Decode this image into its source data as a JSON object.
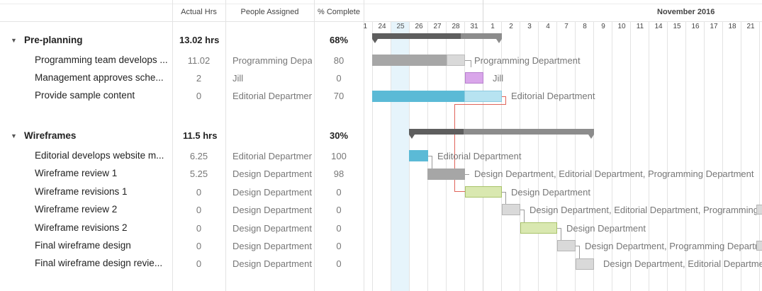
{
  "columns": {
    "actual_hrs": "Actual Hrs",
    "people_assigned": "People Assigned",
    "percent_complete": "% Complete"
  },
  "timeline": {
    "month_label": "November 2016",
    "days": [
      "1",
      "24",
      "25",
      "26",
      "27",
      "28",
      "31",
      "1",
      "2",
      "3",
      "4",
      "7",
      "8",
      "9",
      "10",
      "11",
      "14",
      "15",
      "16",
      "17",
      "18",
      "21"
    ],
    "today_index": 2
  },
  "groups": [
    {
      "name": "Pre-planning",
      "actual_hrs": "13.02 hrs",
      "percent_complete": "68%",
      "tasks": [
        {
          "name": "Programming team develops ...",
          "actual_hrs": "11.02",
          "people": "Programming Depar",
          "percent": "80",
          "bar_label": "Programming Department"
        },
        {
          "name": "Management approves sche...",
          "actual_hrs": "2",
          "people": "Jill",
          "percent": "0",
          "bar_label": "Jill"
        },
        {
          "name": "Provide sample content",
          "actual_hrs": "0",
          "people": "Editorial Departmen",
          "percent": "70",
          "bar_label": "Editorial Department"
        }
      ]
    },
    {
      "name": "Wireframes",
      "actual_hrs": "11.5 hrs",
      "percent_complete": "30%",
      "tasks": [
        {
          "name": "Editorial develops website m...",
          "actual_hrs": "6.25",
          "people": "Editorial Departmen",
          "percent": "100",
          "bar_label": "Editorial Department"
        },
        {
          "name": "Wireframe review 1",
          "actual_hrs": "5.25",
          "people": "Design Department,",
          "percent": "98",
          "bar_label": "Design Department, Editorial Department, Programming Department"
        },
        {
          "name": "Wireframe revisions 1",
          "actual_hrs": "0",
          "people": "Design Department",
          "percent": "0",
          "bar_label": "Design Department"
        },
        {
          "name": "Wireframe review 2",
          "actual_hrs": "0",
          "people": "Design Department,",
          "percent": "0",
          "bar_label": "Design Department, Editorial Department, Programming Dep"
        },
        {
          "name": "Wireframe revisions 2",
          "actual_hrs": "0",
          "people": "Design Department",
          "percent": "0",
          "bar_label": "Design Department"
        },
        {
          "name": "Final wireframe design",
          "actual_hrs": "0",
          "people": "Design Department,",
          "percent": "0",
          "bar_label": "Design Department, Programming Departme"
        },
        {
          "name": "Final wireframe design revie...",
          "actual_hrs": "0",
          "people": "Design Department,",
          "percent": "0",
          "bar_label": "Design Department, Editorial Departme"
        }
      ]
    }
  ],
  "colors": {
    "gray_bar": "#a6a6a6",
    "light_gray_bar": "#d9d9d9",
    "purple_bar": "#d9a6ea",
    "blue_bar": "#5bbad6",
    "light_blue_bar": "#b7e3f1",
    "green_bar": "#d9e8b0",
    "summary_dark": "#5e5e5e",
    "summary_light": "#8c8c8c",
    "dependency_red": "#e0645a"
  }
}
